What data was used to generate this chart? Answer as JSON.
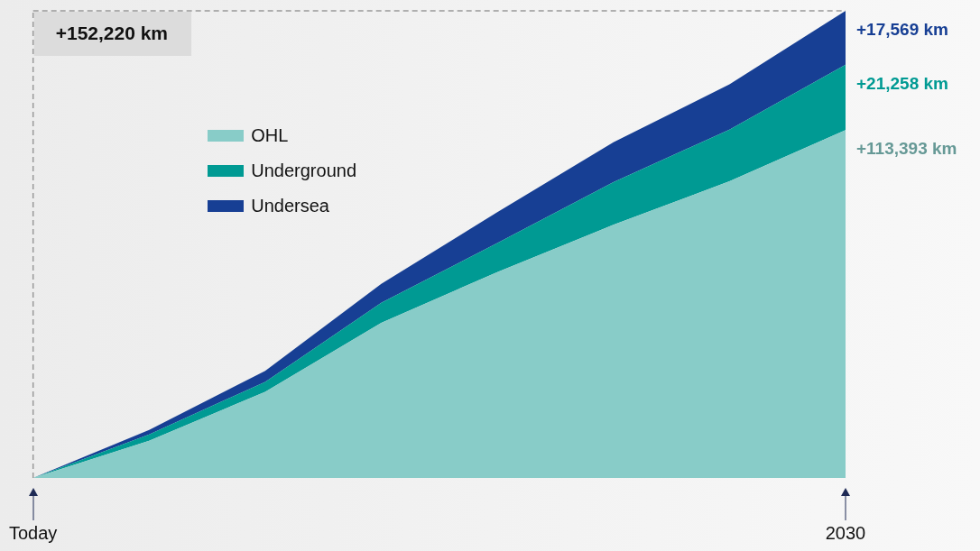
{
  "chart_data": {
    "type": "area",
    "stacked": true,
    "tick_labels": "x",
    "legend": "top left",
    "categories": [
      "Today",
      null,
      null,
      null,
      null,
      null,
      null,
      "2030"
    ],
    "series": [
      {
        "name": "OHL",
        "color": "#88ccc8",
        "values": [
          0,
          12120,
          28080,
          50550,
          67100,
          82470,
          96660,
          113393
        ],
        "value_labels": [
          null,
          null,
          null,
          null,
          null,
          null,
          null,
          "+113,393 km"
        ]
      },
      {
        "name": "Underground",
        "color": "#009a93",
        "values": [
          0,
          2070,
          3250,
          6500,
          9460,
          13890,
          16850,
          21258
        ],
        "value_labels": [
          null,
          null,
          null,
          null,
          null,
          null,
          null,
          "+21,258 km"
        ]
      },
      {
        "name": "Undersea",
        "color": "#173f94",
        "values": [
          0,
          1480,
          3550,
          6210,
          10050,
          13010,
          14780,
          17569
        ],
        "value_labels": [
          null,
          null,
          null,
          null,
          null,
          null,
          null,
          "+17,569 km"
        ]
      }
    ],
    "ref_lines": [
      {
        "axis": "y",
        "value": 152220,
        "label": "+152,220 km",
        "color": "#999999",
        "line_style": "dashed"
      },
      {
        "axis": "x",
        "value": "Today",
        "color": "#999999",
        "line_style": "dashed"
      }
    ]
  }
}
